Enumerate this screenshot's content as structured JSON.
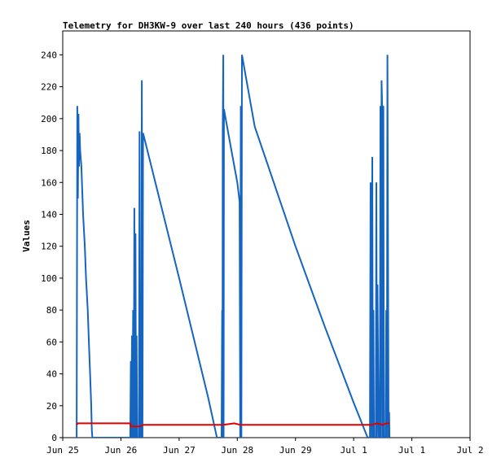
{
  "chart_data": {
    "type": "line",
    "title": "Telemetry for DH3KW-9 over last 240 hours (436 points)",
    "ylabel": "Values",
    "xlabel": "",
    "ylim": [
      0,
      255
    ],
    "yticks": [
      0,
      20,
      40,
      60,
      80,
      100,
      120,
      140,
      160,
      180,
      200,
      220,
      240
    ],
    "xlim": [
      0,
      7
    ],
    "xticks": [
      {
        "x": 0,
        "label": "Jun 25"
      },
      {
        "x": 1,
        "label": "Jun 26"
      },
      {
        "x": 2,
        "label": "Jun 27"
      },
      {
        "x": 3,
        "label": "Jun 28"
      },
      {
        "x": 4,
        "label": "Jun 29"
      },
      {
        "x": 5,
        "label": "Jul 1"
      },
      {
        "x": 6,
        "label": "Jul 1"
      },
      {
        "x": 7,
        "label": "Jul 2"
      }
    ],
    "grid": false,
    "legend": "none",
    "series": [
      {
        "color": "#1565c0",
        "points": [
          [
            0.24,
            0
          ],
          [
            0.25,
            208
          ],
          [
            0.26,
            150
          ],
          [
            0.27,
            203
          ],
          [
            0.28,
            170
          ],
          [
            0.29,
            191
          ],
          [
            0.3,
            180
          ],
          [
            0.32,
            170
          ],
          [
            0.35,
            140
          ],
          [
            0.38,
            120
          ],
          [
            0.4,
            100
          ],
          [
            0.43,
            80
          ],
          [
            0.45,
            60
          ],
          [
            0.47,
            40
          ],
          [
            0.49,
            20
          ],
          [
            0.5,
            5
          ],
          [
            0.51,
            0
          ],
          [
            1.16,
            0
          ],
          [
            1.17,
            48
          ],
          [
            1.18,
            0
          ],
          [
            1.19,
            64
          ],
          [
            1.2,
            0
          ],
          [
            1.21,
            80
          ],
          [
            1.22,
            0
          ],
          [
            1.23,
            144
          ],
          [
            1.24,
            0
          ],
          [
            1.25,
            128
          ],
          [
            1.26,
            0
          ],
          [
            1.27,
            64
          ],
          [
            1.28,
            0
          ],
          [
            1.31,
            0
          ],
          [
            1.32,
            192
          ],
          [
            1.33,
            0
          ],
          [
            1.35,
            0
          ],
          [
            1.36,
            224
          ],
          [
            1.37,
            0
          ],
          [
            1.38,
            191
          ],
          [
            2.0,
            100
          ],
          [
            2.5,
            25
          ],
          [
            2.65,
            0
          ],
          [
            2.73,
            0
          ],
          [
            2.74,
            80
          ],
          [
            2.745,
            0
          ],
          [
            2.75,
            192
          ],
          [
            2.76,
            240
          ],
          [
            2.765,
            0
          ],
          [
            2.77,
            206
          ],
          [
            2.8,
            200
          ],
          [
            2.9,
            180
          ],
          [
            2.95,
            170
          ],
          [
            3.0,
            160
          ],
          [
            3.04,
            148
          ],
          [
            3.05,
            0
          ],
          [
            3.06,
            208
          ],
          [
            3.07,
            0
          ],
          [
            3.08,
            240
          ],
          [
            3.3,
            195
          ],
          [
            4.0,
            120
          ],
          [
            4.5,
            70
          ],
          [
            5.0,
            22
          ],
          [
            5.24,
            0
          ],
          [
            5.28,
            0
          ],
          [
            5.29,
            160
          ],
          [
            5.3,
            0
          ],
          [
            5.31,
            80
          ],
          [
            5.32,
            176
          ],
          [
            5.33,
            0
          ],
          [
            5.34,
            80
          ],
          [
            5.35,
            0
          ],
          [
            5.38,
            0
          ],
          [
            5.39,
            160
          ],
          [
            5.4,
            0
          ],
          [
            5.41,
            96
          ],
          [
            5.42,
            48
          ],
          [
            5.43,
            0
          ],
          [
            5.45,
            0
          ],
          [
            5.46,
            208
          ],
          [
            5.47,
            0
          ],
          [
            5.48,
            224
          ],
          [
            5.49,
            208
          ],
          [
            5.5,
            0
          ],
          [
            5.51,
            208
          ],
          [
            5.52,
            0
          ],
          [
            5.55,
            0
          ],
          [
            5.56,
            80
          ],
          [
            5.565,
            0
          ],
          [
            5.57,
            0
          ],
          [
            5.58,
            240
          ],
          [
            5.59,
            120
          ],
          [
            5.6,
            0
          ],
          [
            5.61,
            16
          ],
          [
            5.615,
            0
          ]
        ]
      },
      {
        "color": "#e00000",
        "points": [
          [
            0.24,
            8
          ],
          [
            0.26,
            9
          ],
          [
            1.16,
            9
          ],
          [
            1.17,
            7
          ],
          [
            1.32,
            7
          ],
          [
            1.38,
            8
          ],
          [
            2.73,
            8
          ],
          [
            2.76,
            8
          ],
          [
            2.95,
            9
          ],
          [
            3.05,
            8
          ],
          [
            3.2,
            8
          ],
          [
            5.24,
            8
          ],
          [
            5.31,
            8
          ],
          [
            5.4,
            9
          ],
          [
            5.5,
            8
          ],
          [
            5.56,
            9
          ],
          [
            5.62,
            9
          ]
        ]
      }
    ]
  }
}
